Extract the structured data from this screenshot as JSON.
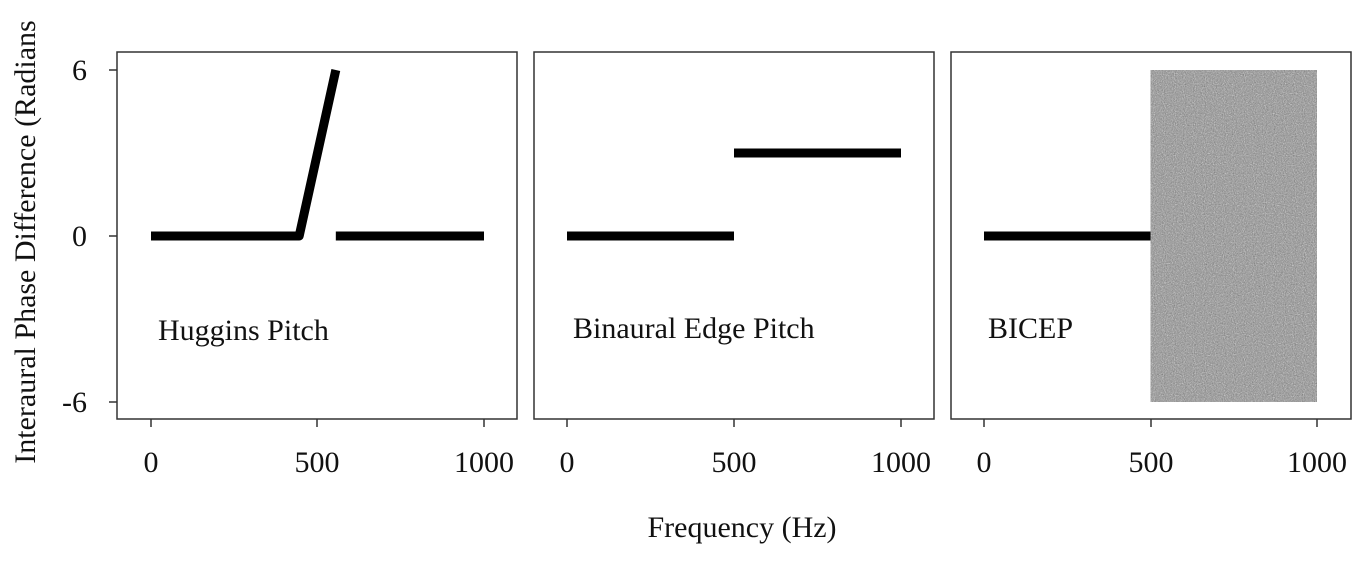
{
  "chart_data": [
    {
      "type": "line",
      "annotation": "Huggins Pitch",
      "ylabel": "Interaural Phase Difference (Radians",
      "xlabel": "Frequency (Hz)",
      "xlim": [
        0,
        1000
      ],
      "ylim": [
        -6,
        6
      ],
      "xticks": [
        "0",
        "500",
        "1000"
      ],
      "yticks": [
        "6",
        "0",
        "-6"
      ],
      "series": [
        {
          "points": [
            [
              0,
              0
            ],
            [
              445,
              0
            ],
            [
              555,
              6
            ]
          ]
        },
        {
          "points": [
            [
              555,
              0
            ],
            [
              1000,
              0
            ]
          ]
        }
      ],
      "noise_band": null
    },
    {
      "type": "line",
      "annotation": "Binaural Edge Pitch",
      "xlim": [
        0,
        1000
      ],
      "ylim": [
        -6,
        6
      ],
      "xticks": [
        "0",
        "500",
        "1000"
      ],
      "series": [
        {
          "points": [
            [
              0,
              0
            ],
            [
              500,
              0
            ]
          ]
        },
        {
          "points": [
            [
              500,
              3
            ],
            [
              1000,
              3
            ]
          ]
        }
      ],
      "noise_band": null
    },
    {
      "type": "line",
      "annotation": "BICEP",
      "xlim": [
        0,
        1000
      ],
      "ylim": [
        -6,
        6
      ],
      "xticks": [
        "0",
        "500",
        "1000"
      ],
      "series": [
        {
          "points": [
            [
              0,
              0
            ],
            [
              500,
              0
            ]
          ]
        }
      ],
      "noise_band": {
        "x": [
          500,
          1000
        ],
        "y": [
          -6,
          6
        ],
        "color": "#8a8a8a"
      }
    }
  ],
  "colors": {
    "line": "#000000",
    "frame": "#333333",
    "noise": "#8a8a8a"
  }
}
